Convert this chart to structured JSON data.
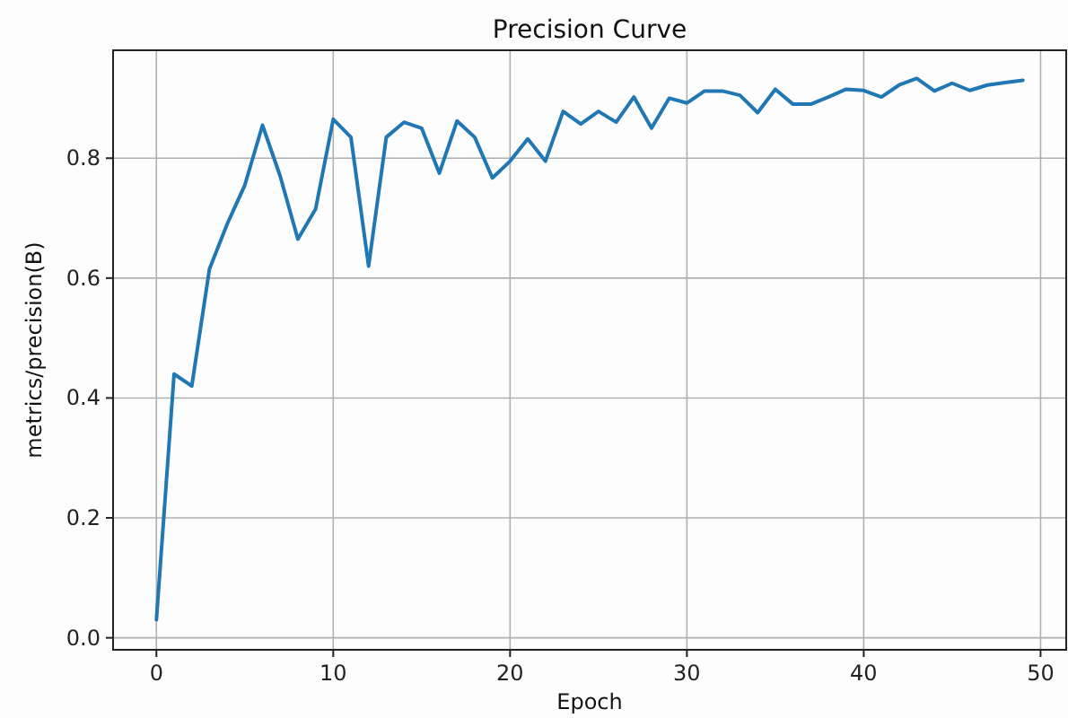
{
  "chart_data": {
    "type": "line",
    "title": "Precision Curve",
    "xlabel": "Epoch",
    "ylabel": "metrics/precision(B)",
    "x": [
      0,
      1,
      2,
      3,
      4,
      5,
      6,
      7,
      8,
      9,
      10,
      11,
      12,
      13,
      14,
      15,
      16,
      17,
      18,
      19,
      20,
      21,
      22,
      23,
      24,
      25,
      26,
      27,
      28,
      29,
      30,
      31,
      32,
      33,
      34,
      35,
      36,
      37,
      38,
      39,
      40,
      41,
      42,
      43,
      44,
      45,
      46,
      47,
      48,
      49
    ],
    "series": [
      {
        "color": "#1f77b4",
        "values": [
          0.03,
          0.44,
          0.42,
          0.615,
          0.69,
          0.755,
          0.855,
          0.77,
          0.665,
          0.715,
          0.865,
          0.835,
          0.62,
          0.835,
          0.86,
          0.85,
          0.775,
          0.862,
          0.835,
          0.767,
          0.795,
          0.832,
          0.795,
          0.878,
          0.857,
          0.878,
          0.86,
          0.902,
          0.85,
          0.9,
          0.892,
          0.912,
          0.912,
          0.905,
          0.876,
          0.915,
          0.89,
          0.89,
          0.902,
          0.915,
          0.913,
          0.902,
          0.922,
          0.933,
          0.912,
          0.925,
          0.913,
          0.922,
          0.926,
          0.93
        ]
      }
    ],
    "xlim": [
      -2.45,
      51.45
    ],
    "ylim": [
      -0.02,
      0.98
    ],
    "xticks": [
      0,
      10,
      20,
      30,
      40,
      50
    ],
    "yticks": [
      {
        "value": 0,
        "label": "0.0"
      },
      {
        "value": 0.2,
        "label": "0.2"
      },
      {
        "value": 0.4,
        "label": "0.4"
      },
      {
        "value": 0.6,
        "label": "0.6"
      },
      {
        "value": 0.8,
        "label": "0.8"
      }
    ],
    "grid": true,
    "marker": "none",
    "line_style": "solid"
  }
}
